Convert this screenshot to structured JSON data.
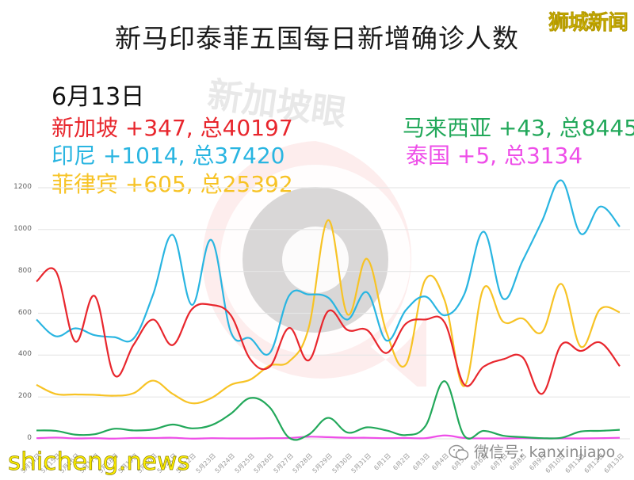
{
  "header": {
    "title": "新马印泰菲五国每日新增确诊人数",
    "brand_logo": "狮城新闻"
  },
  "summary": {
    "date": "6月13日",
    "singapore": "新加坡 +347, 总40197",
    "indonesia": "印尼 +1014, 总37420",
    "philippines": "菲律宾 +605, 总25392",
    "malaysia": "马来西亚 +43, 总8445",
    "thailand": "泰国 +5, 总3134"
  },
  "watermarks": {
    "center_text": "新加坡眼",
    "site": "shicheng.news",
    "wechat": "微信号: kanxinjiapo"
  },
  "colors": {
    "singapore": "#e8262d",
    "indonesia": "#29b5e1",
    "philippines": "#f7c325",
    "malaysia": "#22a85a",
    "thailand": "#ee4ee8",
    "grid": "#e6e6e6"
  },
  "chart_data": {
    "type": "line",
    "title": "新马印泰菲五国每日新增确诊人数",
    "xlabel": "",
    "ylabel": "",
    "ylim": [
      0,
      1200
    ],
    "yticks": [
      0,
      200,
      400,
      600,
      800,
      1000,
      1200
    ],
    "grid": true,
    "legend_position": "top-left text annotations",
    "categories": [
      "5月14日",
      "5月15日",
      "5月16日",
      "5月17日",
      "5月18日",
      "5月19日",
      "5月20日",
      "5月21日",
      "5月22日",
      "5月23日",
      "5月24日",
      "5月25日",
      "5月26日",
      "5月27日",
      "5月28日",
      "5月29日",
      "5月30日",
      "5月31日",
      "6月1日",
      "6月2日",
      "6月3日",
      "6月4日",
      "6月5日",
      "6月6日",
      "6月7日",
      "6月8日",
      "6月9日",
      "6月10日",
      "6月11日",
      "6月12日",
      "6月13日"
    ],
    "series": [
      {
        "name": "新加坡",
        "color": "#e8262d",
        "values": [
          752,
          800,
          465,
          682,
          305,
          450,
          570,
          448,
          620,
          640,
          590,
          380,
          345,
          530,
          375,
          610,
          520,
          520,
          410,
          550,
          570,
          555,
          260,
          345,
          380,
          390,
          215,
          450,
          420,
          460,
          347
        ]
      },
      {
        "name": "印尼",
        "color": "#29b5e1",
        "values": [
          570,
          490,
          528,
          495,
          486,
          480,
          690,
          975,
          640,
          950,
          510,
          480,
          410,
          685,
          690,
          675,
          570,
          700,
          470,
          615,
          680,
          590,
          690,
          990,
          670,
          850,
          1040,
          1235,
          980,
          1110,
          1014
        ]
      },
      {
        "name": "菲律宾",
        "color": "#f7c325",
        "values": [
          258,
          214,
          212,
          210,
          206,
          218,
          278,
          215,
          170,
          195,
          258,
          283,
          350,
          370,
          530,
          1045,
          595,
          860,
          510,
          355,
          760,
          660,
          252,
          720,
          560,
          575,
          510,
          740,
          440,
          620,
          605
        ]
      },
      {
        "name": "马来西亚",
        "color": "#22a85a",
        "values": [
          40,
          38,
          20,
          22,
          48,
          40,
          45,
          68,
          50,
          65,
          120,
          195,
          150,
          5,
          20,
          100,
          30,
          55,
          40,
          18,
          60,
          275,
          15,
          38,
          15,
          8,
          3,
          5,
          35,
          38,
          43
        ]
      },
      {
        "name": "泰国",
        "color": "#ee4ee8",
        "values": [
          3,
          6,
          2,
          3,
          1,
          4,
          4,
          5,
          1,
          3,
          2,
          2,
          3,
          4,
          10,
          8,
          5,
          5,
          3,
          4,
          3,
          16,
          4,
          2,
          2,
          3,
          2,
          2,
          2,
          3,
          5
        ]
      }
    ]
  }
}
